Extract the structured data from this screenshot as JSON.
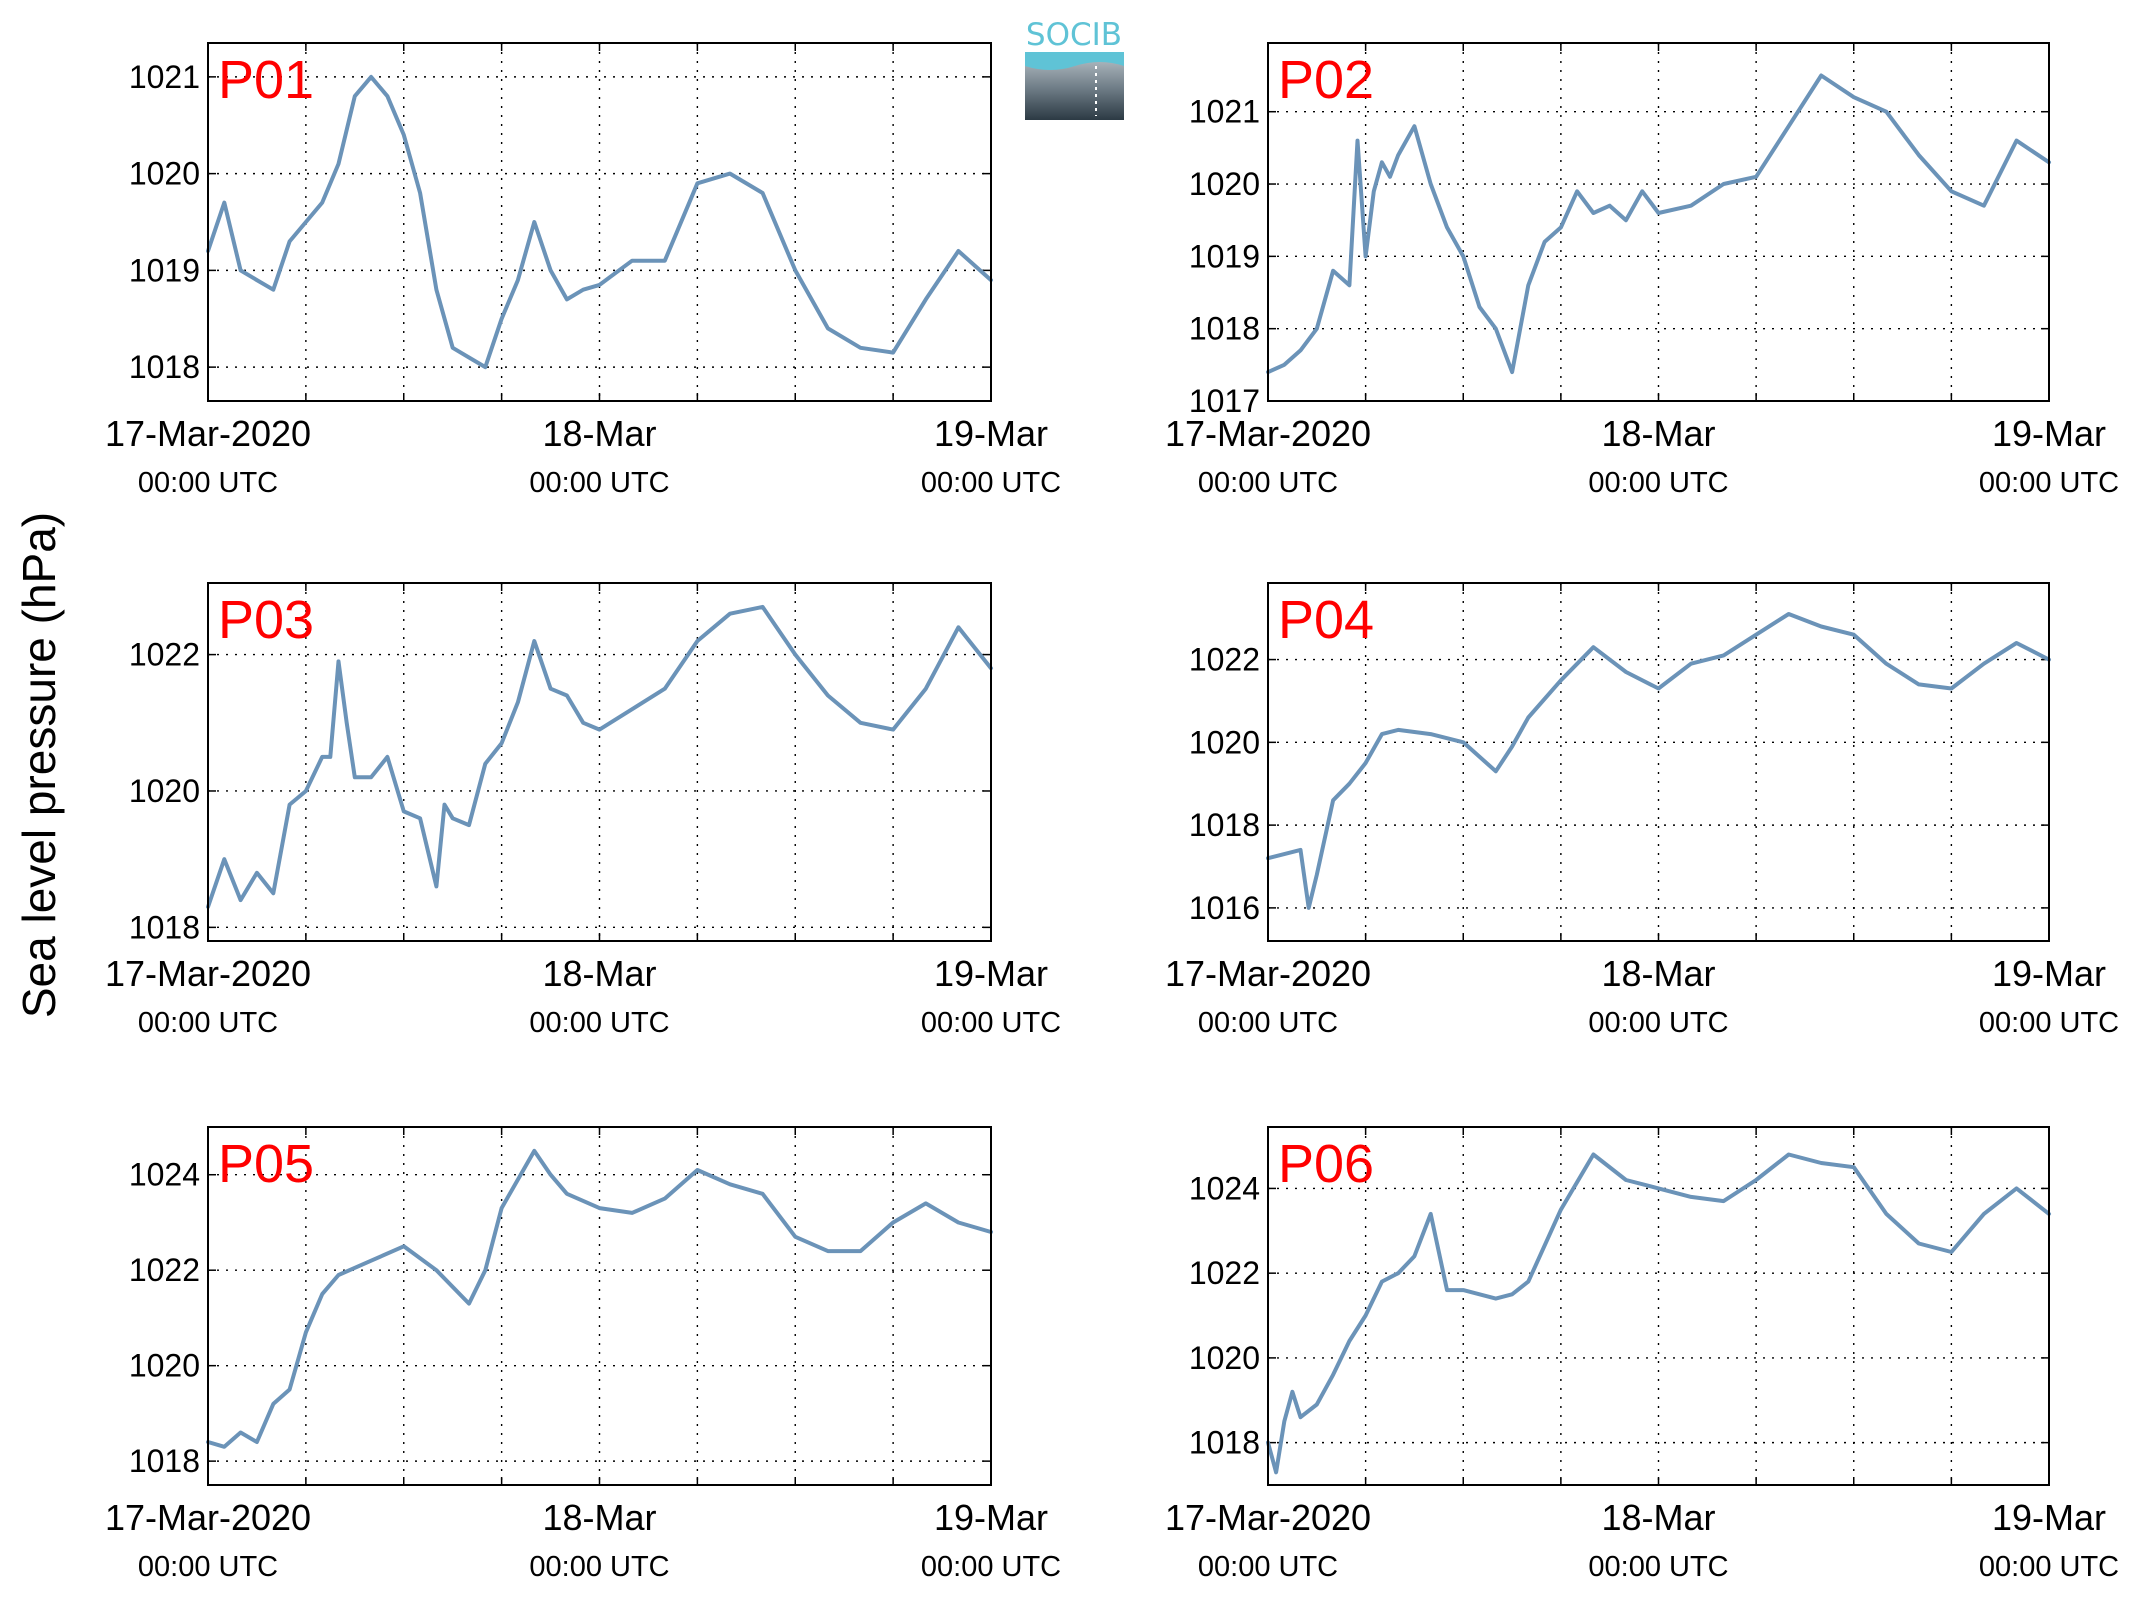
{
  "figure": {
    "ylabel": "Sea level pressure (hPa)",
    "logo_text": "SOCIB",
    "line_color": "#6b93b8",
    "label_color": "#ff0000"
  },
  "chart_data": [
    {
      "type": "line",
      "title": "P01",
      "ylim": [
        1017.65,
        1021.35
      ],
      "yticks": [
        1018,
        1019,
        1020,
        1021
      ],
      "xlim": [
        "2020-03-17T00:00",
        "2020-03-19T00:00"
      ],
      "xticks": [
        {
          "main": "17-Mar-2020",
          "sub": "00:00 UTC"
        },
        {
          "main": "18-Mar",
          "sub": "00:00 UTC"
        },
        {
          "main": "19-Mar",
          "sub": "00:00 UTC"
        }
      ],
      "grid": true,
      "series": [
        {
          "x_hours": [
            0,
            1,
            2,
            3,
            4,
            5,
            6,
            7,
            8,
            9,
            10,
            11,
            12,
            13,
            14,
            15,
            16,
            17,
            18,
            19,
            20,
            21,
            22,
            23,
            24,
            26,
            28,
            30,
            32,
            34,
            36,
            38,
            40,
            42,
            44,
            46,
            48
          ],
          "values": [
            1019.2,
            1019.7,
            1019.0,
            1018.9,
            1018.8,
            1019.3,
            1019.5,
            1019.7,
            1020.1,
            1020.8,
            1021.0,
            1020.8,
            1020.4,
            1019.8,
            1018.8,
            1018.2,
            1018.1,
            1018.0,
            1018.5,
            1018.9,
            1019.5,
            1019.0,
            1018.7,
            1018.8,
            1018.85,
            1019.1,
            1019.1,
            1019.9,
            1020.0,
            1019.8,
            1019.0,
            1018.4,
            1018.2,
            1018.15,
            1018.7,
            1019.2,
            1018.9
          ]
        }
      ]
    },
    {
      "type": "line",
      "title": "P02",
      "ylim": [
        1017.0,
        1021.95
      ],
      "yticks": [
        1017,
        1018,
        1019,
        1020,
        1021
      ],
      "xlim": [
        "2020-03-17T00:00",
        "2020-03-19T00:00"
      ],
      "xticks": [
        {
          "main": "17-Mar-2020",
          "sub": "00:00 UTC"
        },
        {
          "main": "18-Mar",
          "sub": "00:00 UTC"
        },
        {
          "main": "19-Mar",
          "sub": "00:00 UTC"
        }
      ],
      "grid": true,
      "series": [
        {
          "x_hours": [
            0,
            1,
            2,
            3,
            4,
            5,
            5.5,
            6,
            6.5,
            7,
            7.5,
            8,
            9,
            10,
            11,
            12,
            13,
            14,
            15,
            16,
            17,
            18,
            19,
            20,
            21,
            22,
            23,
            24,
            26,
            28,
            30,
            32,
            34,
            36,
            38,
            40,
            42,
            44,
            46,
            48
          ],
          "values": [
            1017.4,
            1017.5,
            1017.7,
            1018.0,
            1018.8,
            1018.6,
            1020.6,
            1019.0,
            1019.9,
            1020.3,
            1020.1,
            1020.4,
            1020.8,
            1020.0,
            1019.4,
            1019.0,
            1018.3,
            1018.0,
            1017.4,
            1018.6,
            1019.2,
            1019.4,
            1019.9,
            1019.6,
            1019.7,
            1019.5,
            1019.9,
            1019.6,
            1019.7,
            1020.0,
            1020.1,
            1020.8,
            1021.5,
            1021.2,
            1021.0,
            1020.4,
            1019.9,
            1019.7,
            1020.6,
            1020.3
          ]
        }
      ]
    },
    {
      "type": "line",
      "title": "P03",
      "ylim": [
        1017.8,
        1023.05
      ],
      "yticks": [
        1018,
        1020,
        1022
      ],
      "xlim": [
        "2020-03-17T00:00",
        "2020-03-19T00:00"
      ],
      "xticks": [
        {
          "main": "17-Mar-2020",
          "sub": "00:00 UTC"
        },
        {
          "main": "18-Mar",
          "sub": "00:00 UTC"
        },
        {
          "main": "19-Mar",
          "sub": "00:00 UTC"
        }
      ],
      "grid": true,
      "series": [
        {
          "x_hours": [
            0,
            1,
            2,
            3,
            4,
            5,
            6,
            7,
            7.5,
            8,
            8.5,
            9,
            10,
            11,
            12,
            13,
            14,
            14.5,
            15,
            16,
            17,
            18,
            19,
            20,
            21,
            22,
            23,
            24,
            26,
            28,
            30,
            32,
            34,
            36,
            38,
            40,
            42,
            44,
            46,
            48
          ],
          "values": [
            1018.3,
            1019.0,
            1018.4,
            1018.8,
            1018.5,
            1019.8,
            1020.0,
            1020.5,
            1020.5,
            1021.9,
            1021.0,
            1020.2,
            1020.2,
            1020.5,
            1019.7,
            1019.6,
            1018.6,
            1019.8,
            1019.6,
            1019.5,
            1020.4,
            1020.7,
            1021.3,
            1022.2,
            1021.5,
            1021.4,
            1021.0,
            1020.9,
            1021.2,
            1021.5,
            1022.2,
            1022.6,
            1022.7,
            1022.0,
            1021.4,
            1021.0,
            1020.9,
            1021.5,
            1022.4,
            1021.8
          ]
        }
      ]
    },
    {
      "type": "line",
      "title": "P04",
      "ylim": [
        1015.2,
        1023.85
      ],
      "yticks": [
        1016,
        1018,
        1020,
        1022
      ],
      "xlim": [
        "2020-03-17T00:00",
        "2020-03-19T00:00"
      ],
      "xticks": [
        {
          "main": "17-Mar-2020",
          "sub": "00:00 UTC"
        },
        {
          "main": "18-Mar",
          "sub": "00:00 UTC"
        },
        {
          "main": "19-Mar",
          "sub": "00:00 UTC"
        }
      ],
      "grid": true,
      "series": [
        {
          "x_hours": [
            0,
            1,
            2,
            2.5,
            3,
            4,
            5,
            6,
            7,
            8,
            10,
            12,
            14,
            15,
            16,
            18,
            20,
            22,
            24,
            26,
            28,
            30,
            32,
            34,
            36,
            38,
            40,
            42,
            44,
            46,
            48
          ],
          "values": [
            1017.2,
            1017.3,
            1017.4,
            1016.0,
            1016.8,
            1018.6,
            1019.0,
            1019.5,
            1020.2,
            1020.3,
            1020.2,
            1020.0,
            1019.3,
            1019.9,
            1020.6,
            1021.5,
            1022.3,
            1021.7,
            1021.3,
            1021.9,
            1022.1,
            1022.6,
            1023.1,
            1022.8,
            1022.6,
            1021.9,
            1021.4,
            1021.3,
            1021.9,
            1022.4,
            1022.0
          ]
        }
      ]
    },
    {
      "type": "line",
      "title": "P05",
      "ylim": [
        1017.5,
        1025.0
      ],
      "yticks": [
        1018,
        1020,
        1022,
        1024
      ],
      "xlim": [
        "2020-03-17T00:00",
        "2020-03-19T00:00"
      ],
      "xticks": [
        {
          "main": "17-Mar-2020",
          "sub": "00:00 UTC"
        },
        {
          "main": "18-Mar",
          "sub": "00:00 UTC"
        },
        {
          "main": "19-Mar",
          "sub": "00:00 UTC"
        }
      ],
      "grid": true,
      "series": [
        {
          "x_hours": [
            0,
            1,
            2,
            3,
            4,
            5,
            6,
            7,
            8,
            10,
            12,
            14,
            16,
            17,
            18,
            20,
            21,
            22,
            24,
            26,
            28,
            30,
            32,
            34,
            36,
            38,
            40,
            42,
            44,
            46,
            48
          ],
          "values": [
            1018.4,
            1018.3,
            1018.6,
            1018.4,
            1019.2,
            1019.5,
            1020.7,
            1021.5,
            1021.9,
            1022.2,
            1022.5,
            1022.0,
            1021.3,
            1022.0,
            1023.3,
            1024.5,
            1024.0,
            1023.6,
            1023.3,
            1023.2,
            1023.5,
            1024.1,
            1023.8,
            1023.6,
            1022.7,
            1022.4,
            1022.4,
            1023.0,
            1023.4,
            1023.0,
            1022.8
          ]
        }
      ]
    },
    {
      "type": "line",
      "title": "P06",
      "ylim": [
        1017.0,
        1025.45
      ],
      "yticks": [
        1018,
        1020,
        1022,
        1024
      ],
      "xlim": [
        "2020-03-17T00:00",
        "2020-03-19T00:00"
      ],
      "xticks": [
        {
          "main": "17-Mar-2020",
          "sub": "00:00 UTC"
        },
        {
          "main": "18-Mar",
          "sub": "00:00 UTC"
        },
        {
          "main": "19-Mar",
          "sub": "00:00 UTC"
        }
      ],
      "grid": true,
      "series": [
        {
          "x_hours": [
            0,
            0.5,
            1,
            1.5,
            2,
            3,
            4,
            5,
            6,
            7,
            8,
            9,
            10,
            11,
            12,
            13,
            14,
            15,
            16,
            18,
            20,
            22,
            24,
            26,
            28,
            30,
            32,
            34,
            36,
            38,
            40,
            42,
            44,
            46,
            48
          ],
          "values": [
            1018.0,
            1017.3,
            1018.5,
            1019.2,
            1018.6,
            1018.9,
            1019.6,
            1020.4,
            1021.0,
            1021.8,
            1022.0,
            1022.4,
            1023.4,
            1021.6,
            1021.6,
            1021.5,
            1021.4,
            1021.5,
            1021.8,
            1023.5,
            1024.8,
            1024.2,
            1024.0,
            1023.8,
            1023.7,
            1024.2,
            1024.8,
            1024.6,
            1024.5,
            1023.4,
            1022.7,
            1022.5,
            1023.4,
            1024.0,
            1023.4
          ]
        }
      ]
    }
  ]
}
